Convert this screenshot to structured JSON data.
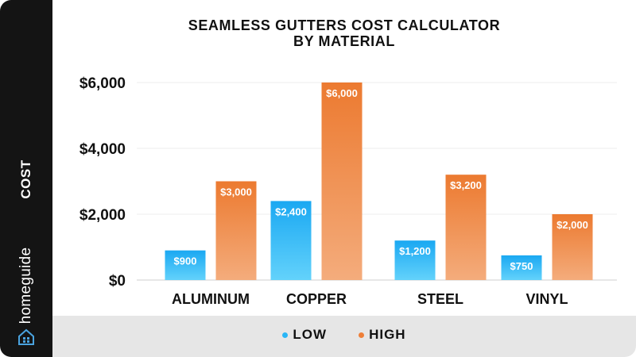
{
  "colors": {
    "low": "#29b6f6",
    "low_top": "#1aa8f2",
    "low_bottom": "#63d2fb",
    "high": "#ee7f38",
    "high_top": "#ec7a30",
    "high_bottom": "#f4ac7c",
    "sidebar": "#141414",
    "legend_bg": "#e6e6e6"
  },
  "sidebar": {
    "ylabel": "COST",
    "brand": "homeguide",
    "brand_icon": "house-icon"
  },
  "chart_data": {
    "type": "bar",
    "title": "SEAMLESS GUTTERS COST CALCULATOR",
    "title_line2": "BY MATERIAL",
    "xlabel": "",
    "ylabel": "COST",
    "ylim": [
      0,
      6000
    ],
    "yticks": [
      0,
      2000,
      4000,
      6000
    ],
    "ytick_labels": [
      "$0",
      "$2,000",
      "$4,000",
      "$6,000"
    ],
    "grid": true,
    "legend_position": "bottom",
    "categories": [
      "ALUMINUM",
      "COPPER",
      "STEEL",
      "VINYL"
    ],
    "series": [
      {
        "name": "LOW",
        "values": [
          900,
          2400,
          1200,
          750
        ],
        "labels": [
          "$900",
          "$2,400",
          "$1,200",
          "$750"
        ]
      },
      {
        "name": "HIGH",
        "values": [
          3000,
          6000,
          3200,
          2000
        ],
        "labels": [
          "$3,000",
          "$6,000",
          "$3,200",
          "$2,000"
        ]
      }
    ]
  }
}
